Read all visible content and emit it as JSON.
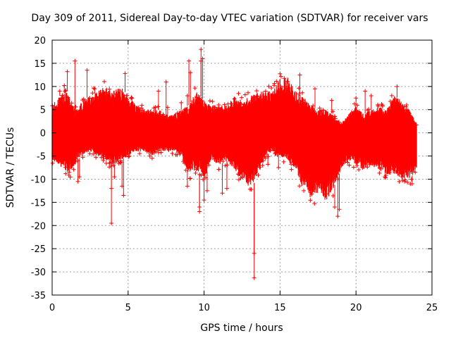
{
  "chart_data": {
    "type": "scatter",
    "title": "Day 309 of 2011, Sidereal Day-to-day VTEC variation (SDTVAR) for receiver vars",
    "xlabel": "GPS time / hours",
    "ylabel": "SDTVAR / TECUs",
    "xlim": [
      0,
      25
    ],
    "ylim": [
      -35,
      20
    ],
    "xticks": [
      0,
      5,
      10,
      15,
      20,
      25
    ],
    "yticks": [
      20,
      15,
      10,
      5,
      0,
      -5,
      -10,
      -15,
      -20,
      -25,
      -30,
      -35
    ],
    "grid": true,
    "color": "#ff0000",
    "series_name": "SDTVAR",
    "envelope": [
      [
        0.0,
        6,
        -6
      ],
      [
        0.5,
        8,
        -7
      ],
      [
        1.0,
        9,
        -9
      ],
      [
        1.3,
        6,
        -8
      ],
      [
        1.6,
        5,
        -6
      ],
      [
        2.0,
        7,
        -5
      ],
      [
        2.5,
        8,
        -4
      ],
      [
        3.0,
        9,
        -5
      ],
      [
        3.5,
        10,
        -6
      ],
      [
        4.0,
        9,
        -7
      ],
      [
        4.5,
        10,
        -6
      ],
      [
        5.0,
        8,
        -5
      ],
      [
        5.5,
        6,
        -4
      ],
      [
        6.0,
        5,
        -4
      ],
      [
        6.5,
        5,
        -5
      ],
      [
        7.0,
        5,
        -4
      ],
      [
        7.5,
        4,
        -4
      ],
      [
        8.0,
        4,
        -4
      ],
      [
        8.5,
        5,
        -5
      ],
      [
        9.0,
        6,
        -9
      ],
      [
        9.5,
        9,
        -8
      ],
      [
        10.0,
        7,
        -10
      ],
      [
        10.5,
        6,
        -6
      ],
      [
        11.0,
        6,
        -7
      ],
      [
        11.5,
        6,
        -6
      ],
      [
        12.0,
        8,
        -8
      ],
      [
        12.5,
        7,
        -10
      ],
      [
        13.0,
        8,
        -12
      ],
      [
        13.5,
        9,
        -10
      ],
      [
        14.0,
        9,
        -5
      ],
      [
        14.5,
        9,
        -4
      ],
      [
        15.0,
        12,
        -5
      ],
      [
        15.5,
        12,
        -6
      ],
      [
        16.0,
        9,
        -8
      ],
      [
        16.5,
        8,
        -12
      ],
      [
        17.0,
        6,
        -14
      ],
      [
        17.5,
        5,
        -13
      ],
      [
        18.0,
        5,
        -15
      ],
      [
        18.5,
        4,
        -12
      ],
      [
        19.0,
        2,
        -8
      ],
      [
        19.5,
        4,
        -6
      ],
      [
        20.0,
        6,
        -7
      ],
      [
        20.5,
        4,
        -8
      ],
      [
        21.0,
        5,
        -7
      ],
      [
        21.5,
        6,
        -8
      ],
      [
        22.0,
        5,
        -9
      ],
      [
        22.5,
        8,
        -9
      ],
      [
        23.0,
        7,
        -10
      ],
      [
        23.5,
        5,
        -10
      ],
      [
        24.0,
        2,
        -8
      ]
    ],
    "outliers": [
      [
        0.3,
        5.5
      ],
      [
        0.5,
        9
      ],
      [
        0.8,
        10.2
      ],
      [
        1.0,
        13.2
      ],
      [
        1.5,
        15.5
      ],
      [
        1.7,
        -10.5
      ],
      [
        1.8,
        -9.5
      ],
      [
        2.3,
        13.5
      ],
      [
        2.8,
        9.5
      ],
      [
        3.8,
        -6.5
      ],
      [
        3.9,
        -12
      ],
      [
        3.9,
        -19.5
      ],
      [
        4.1,
        -9.5
      ],
      [
        4.6,
        -11.5
      ],
      [
        4.7,
        -13.5
      ],
      [
        4.8,
        12.8
      ],
      [
        6.8,
        5.5
      ],
      [
        7.0,
        9
      ],
      [
        7.5,
        11
      ],
      [
        7.6,
        5.5
      ],
      [
        8.5,
        6.5
      ],
      [
        8.9,
        -11.5
      ],
      [
        8.9,
        8
      ],
      [
        9.0,
        15.5
      ],
      [
        9.1,
        13
      ],
      [
        9.7,
        -17
      ],
      [
        9.7,
        -16
      ],
      [
        9.8,
        18
      ],
      [
        9.8,
        15.5
      ],
      [
        9.9,
        16
      ],
      [
        10.0,
        -14.5
      ],
      [
        10.2,
        -12.5
      ],
      [
        11.2,
        -13
      ],
      [
        11.5,
        -12
      ],
      [
        13.3,
        -31.3
      ],
      [
        13.3,
        -26
      ],
      [
        13.9,
        -6
      ],
      [
        14.2,
        -6.8
      ],
      [
        14.9,
        -7.5
      ],
      [
        16.3,
        12.5
      ],
      [
        17.3,
        9.5
      ],
      [
        18.4,
        7
      ],
      [
        18.8,
        -18
      ],
      [
        18.9,
        -16.5
      ],
      [
        18.6,
        -16
      ],
      [
        20.0,
        7.5
      ],
      [
        20.6,
        9
      ],
      [
        21.0,
        8
      ],
      [
        21.9,
        -9.5
      ],
      [
        22.2,
        -8.5
      ],
      [
        22.7,
        10
      ],
      [
        23.2,
        -10.5
      ],
      [
        23.7,
        -11
      ],
      [
        23.9,
        -8.5
      ]
    ]
  }
}
